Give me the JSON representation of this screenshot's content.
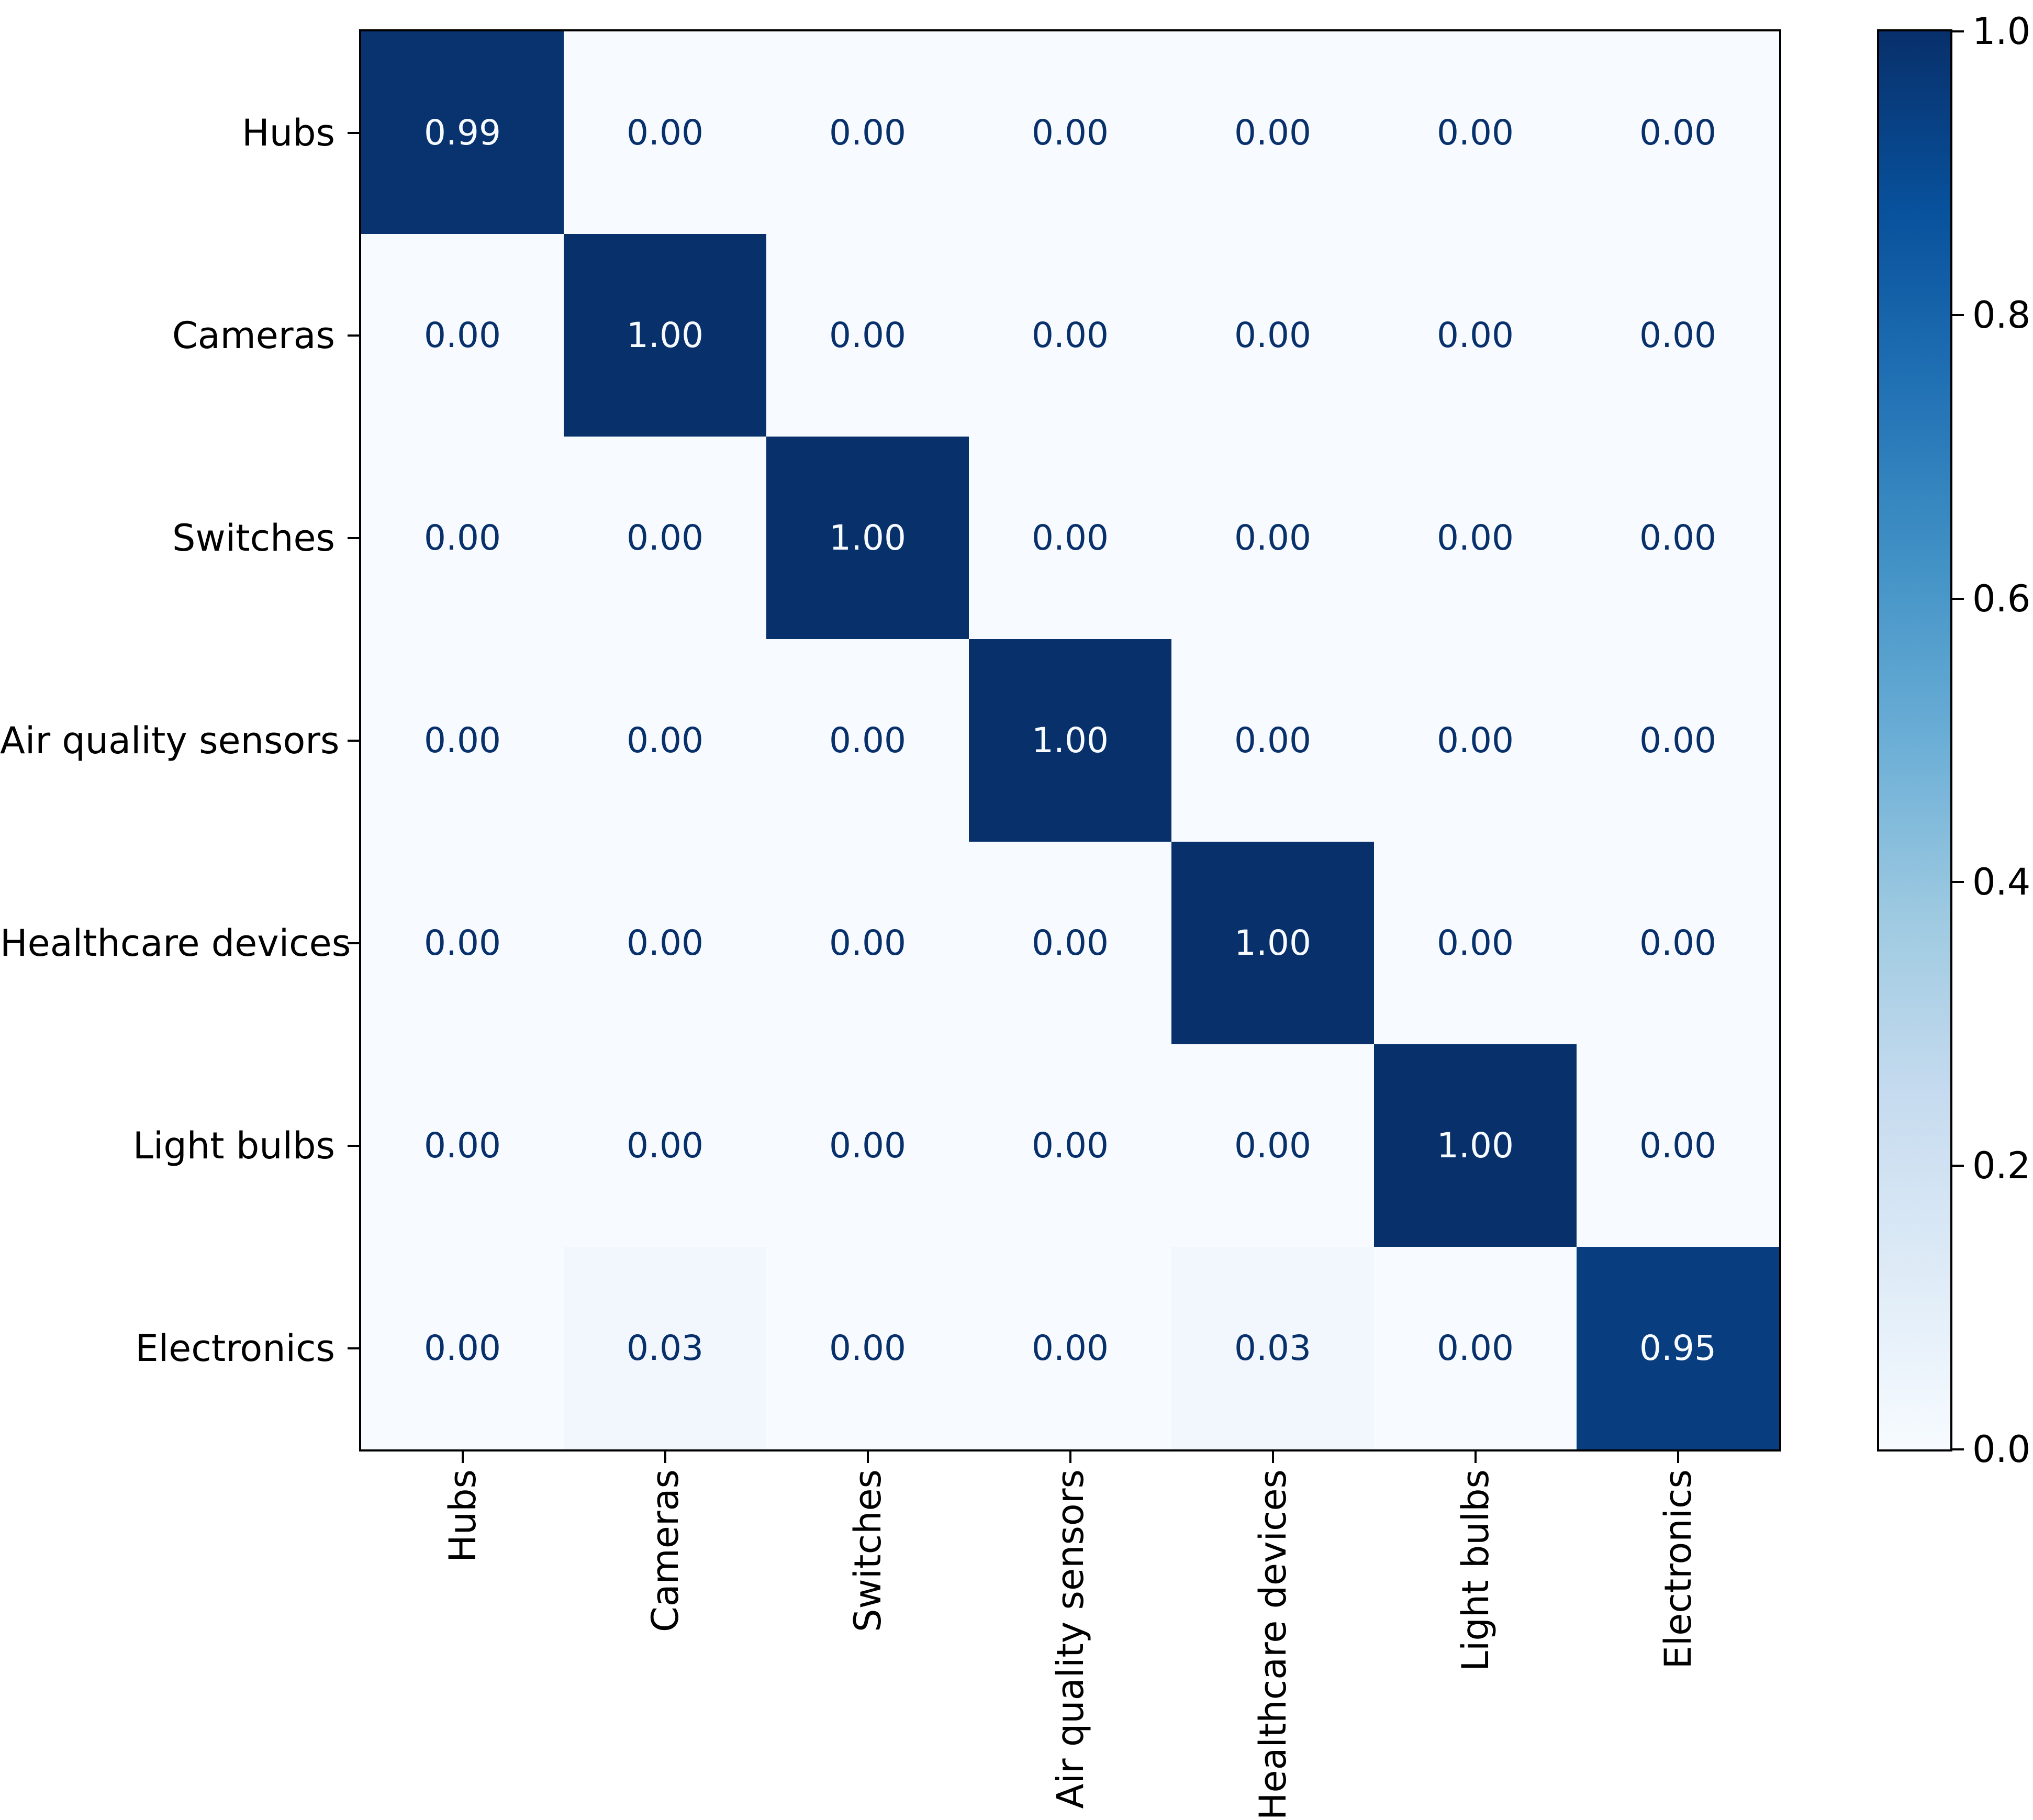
{
  "figure": {
    "background_color": "#ffffff",
    "axis_color": "#000000"
  },
  "chart_data": {
    "type": "heatmap",
    "title": "",
    "xlabel": "",
    "ylabel": "",
    "categories": [
      "Hubs",
      "Cameras",
      "Switches",
      "Air quality sensors",
      "Healthcare devices",
      "Light bulbs",
      "Electronics"
    ],
    "x_tick_labels": [
      "Hubs",
      "Cameras",
      "Switches",
      "Air quality sensors",
      "Healthcare devices",
      "Light bulbs",
      "Electronics"
    ],
    "y_tick_labels": [
      "Hubs",
      "Cameras",
      "Switches",
      "Air quality sensors",
      "Healthcare devices",
      "Light bulbs",
      "Electronics"
    ],
    "matrix": [
      [
        0.99,
        0.0,
        0.0,
        0.0,
        0.0,
        0.0,
        0.0
      ],
      [
        0.0,
        1.0,
        0.0,
        0.0,
        0.0,
        0.0,
        0.0
      ],
      [
        0.0,
        0.0,
        1.0,
        0.0,
        0.0,
        0.0,
        0.0
      ],
      [
        0.0,
        0.0,
        0.0,
        1.0,
        0.0,
        0.0,
        0.0
      ],
      [
        0.0,
        0.0,
        0.0,
        0.0,
        1.0,
        0.0,
        0.0
      ],
      [
        0.0,
        0.0,
        0.0,
        0.0,
        0.0,
        1.0,
        0.0
      ],
      [
        0.0,
        0.03,
        0.0,
        0.0,
        0.03,
        0.0,
        0.95
      ]
    ],
    "value_decimals": 2,
    "vmin": 0.0,
    "vmax": 1.0,
    "grid": false,
    "colormap": {
      "name": "Blues",
      "anchors": [
        "#f7fbff",
        "#deebf7",
        "#c6dbef",
        "#9ecae1",
        "#6baed6",
        "#4292c6",
        "#2171b5",
        "#08519c",
        "#08306b"
      ]
    },
    "cell_text_color_low": "#08306b",
    "cell_text_color_high": "#f7fbff",
    "colorbar": {
      "position": "right",
      "ticks": [
        {
          "value": 1.0,
          "label": "1.0"
        },
        {
          "value": 0.8,
          "label": "0.8"
        },
        {
          "value": 0.6,
          "label": "0.6"
        },
        {
          "value": 0.4,
          "label": "0.4"
        },
        {
          "value": 0.2,
          "label": "0.2"
        },
        {
          "value": 0.0,
          "label": "0.0"
        }
      ]
    }
  }
}
